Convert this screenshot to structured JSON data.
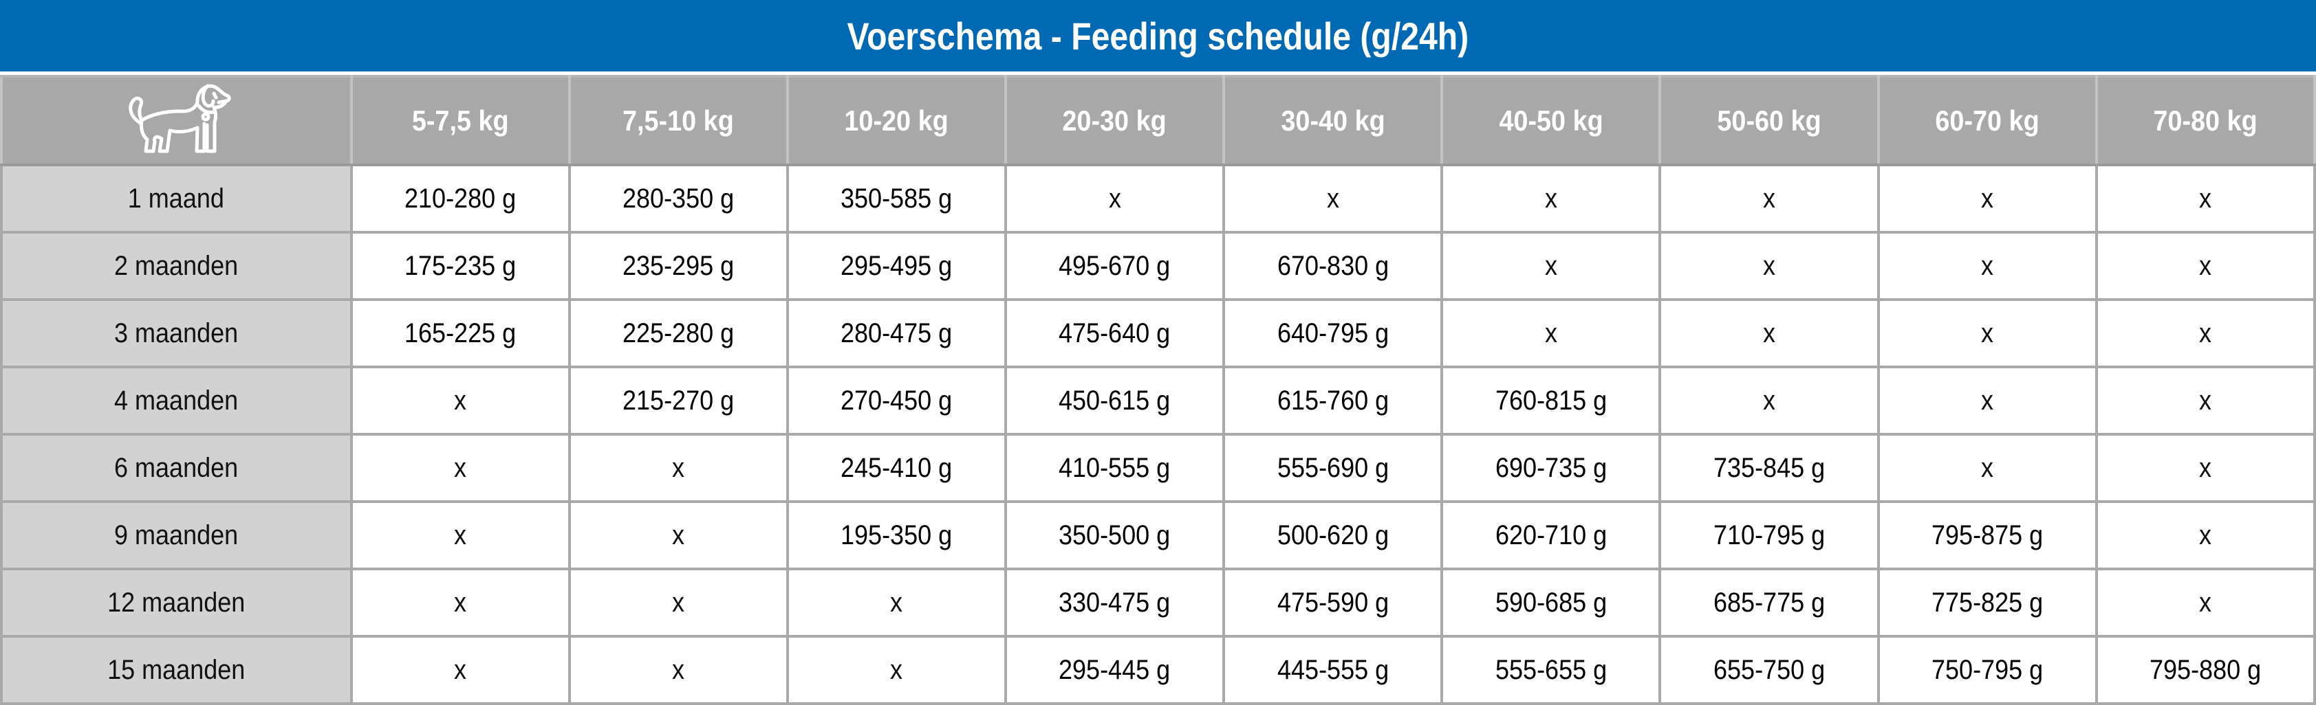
{
  "title": "Voerschema - Feeding schedule (g/24h)",
  "icons": {
    "corner": "dog-icon"
  },
  "colors": {
    "title_bar_blue": "#0069b4",
    "header_gray": "#a8a8a8",
    "row_label_gray": "#d2d2d2",
    "grid_border_gray": "#a9a9a9",
    "cell_white": "#ffffff",
    "header_text": "#ffffff",
    "cell_text": "#000000"
  },
  "chart_data": {
    "type": "table",
    "title": "Voerschema - Feeding schedule (g/24h)",
    "unit": "g/24h",
    "columns": [
      "5-7,5 kg",
      "7,5-10 kg",
      "10-20 kg",
      "20-30 kg",
      "30-40 kg",
      "40-50 kg",
      "50-60 kg",
      "60-70 kg",
      "70-80 kg"
    ],
    "rows": [
      {
        "label": "1 maand",
        "values": [
          "210-280 g",
          "280-350 g",
          "350-585 g",
          "x",
          "x",
          "x",
          "x",
          "x",
          "x"
        ]
      },
      {
        "label": "2 maanden",
        "values": [
          "175-235 g",
          "235-295 g",
          "295-495 g",
          "495-670 g",
          "670-830 g",
          "x",
          "x",
          "x",
          "x"
        ]
      },
      {
        "label": "3 maanden",
        "values": [
          "165-225 g",
          "225-280 g",
          "280-475 g",
          "475-640 g",
          "640-795 g",
          "x",
          "x",
          "x",
          "x"
        ]
      },
      {
        "label": "4 maanden",
        "values": [
          "x",
          "215-270 g",
          "270-450 g",
          "450-615 g",
          "615-760 g",
          "760-815 g",
          "x",
          "x",
          "x"
        ]
      },
      {
        "label": "6 maanden",
        "values": [
          "x",
          "x",
          "245-410 g",
          "410-555 g",
          "555-690 g",
          "690-735 g",
          "735-845 g",
          "x",
          "x"
        ]
      },
      {
        "label": "9 maanden",
        "values": [
          "x",
          "x",
          "195-350 g",
          "350-500 g",
          "500-620 g",
          "620-710 g",
          "710-795 g",
          "795-875 g",
          "x"
        ]
      },
      {
        "label": "12 maanden",
        "values": [
          "x",
          "x",
          "x",
          "330-475 g",
          "475-590 g",
          "590-685 g",
          "685-775 g",
          "775-825 g",
          "x"
        ]
      },
      {
        "label": "15 maanden",
        "values": [
          "x",
          "x",
          "x",
          "295-445 g",
          "445-555 g",
          "555-655 g",
          "655-750 g",
          "750-795 g",
          "795-880 g"
        ]
      }
    ]
  }
}
